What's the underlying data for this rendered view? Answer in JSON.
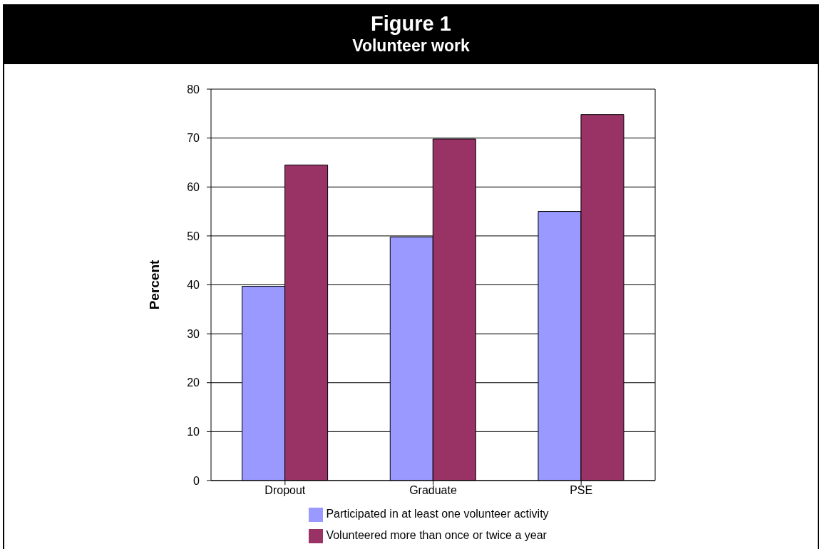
{
  "chart_data": {
    "type": "bar",
    "title": "Figure 1",
    "subtitle": "Volunteer work",
    "ylabel": "Percent",
    "categories": [
      "Dropout",
      "Graduate",
      "PSE"
    ],
    "series": [
      {
        "name": "Participated in at least one volunteer activity",
        "color": "#9999ff",
        "values": [
          39.7,
          49.8,
          55
        ]
      },
      {
        "name": "Volunteered more than once or twice a year",
        "color": "#993366",
        "values": [
          64.5,
          69.8,
          74.8
        ]
      }
    ],
    "ylim": [
      0,
      80
    ],
    "yticks": [
      0,
      10,
      20,
      30,
      40,
      50,
      60,
      70,
      80
    ],
    "grid": "y",
    "legend": "bottom"
  }
}
